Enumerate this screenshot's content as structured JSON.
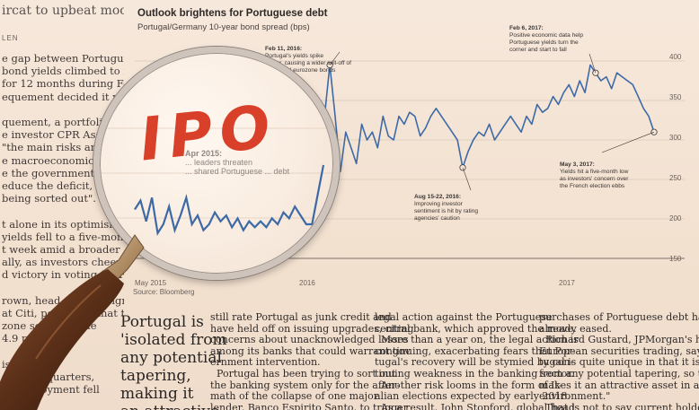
{
  "left_column": {
    "headline_fragment": "ircat to upbeat mood",
    "byline_fragment": "LEN",
    "lines": [
      "e gap between Portuguese and",
      "bond yields climbed to its high-",
      "for 12 months during February,",
      "equement decided it was time",
      "",
      "quement, a portfolio manag",
      "e investor CPR Asset Mana",
      "\"the main risks are bel",
      "e macroeconomic dyna",
      "e the government is",
      "educe the deficit, the bank",
      "being sorted out\".",
      "",
      "t alone in its optimism. P",
      "yields fell to a five-month",
      "t week amid a broader European",
      "ally, as investors cheered Emmanuel",
      "d victory in voting for France's",
      "",
      "rown, head of sovereign d",
      "at Citi, points out that t",
      "zone sovereign de",
      "4.9 per cent s",
      "",
      "is running",
      "straight quarters,",
      "unemployment fell"
    ]
  },
  "chart_data": {
    "type": "line",
    "title": "Outlook brightens for Portuguese debt",
    "subtitle": "Portugal/Germany 10-year bond spread (bps)",
    "xlabel": "",
    "ylabel": "",
    "x_ticks": [
      "May 2015",
      "2016",
      "2017"
    ],
    "y_ticks": [
      400,
      350,
      300,
      250,
      200,
      150
    ],
    "ylim": [
      150,
      400
    ],
    "source": "Source: Bloomberg",
    "series": [
      {
        "values": [
          225,
          240,
          205,
          245,
          185,
          200,
          230,
          190,
          215,
          245,
          200,
          215,
          190,
          200,
          220,
          205,
          215,
          195,
          210,
          190,
          205,
          195,
          205,
          195,
          210,
          200,
          220,
          210,
          230,
          215,
          200,
          200,
          250,
          300,
          330,
          395,
          330,
          260,
          310,
          290,
          270,
          320,
          300,
          310,
          290,
          330,
          305,
          300,
          330,
          320,
          335,
          330,
          305,
          315,
          330,
          340,
          330,
          320,
          310,
          300,
          265,
          285,
          300,
          310,
          305,
          320,
          300,
          310,
          320,
          330,
          320,
          310,
          330,
          320,
          345,
          335,
          340,
          355,
          345,
          360,
          370,
          355,
          375,
          360,
          395,
          385,
          375,
          380,
          365,
          385,
          380,
          375,
          370,
          355,
          340,
          330,
          310
        ],
        "color": "#3d6aa6"
      }
    ],
    "annotations": [
      {
        "date": "Feb 11, 2016:",
        "text": "Portugal's yields spike\nhigher, causing a wider sell-off of\nperipheral eurozone bonds"
      },
      {
        "date": "Aug 15-22, 2016:",
        "text": "Improving investor\nsentiment is hit by rating\nagencies' caution"
      },
      {
        "date": "Feb 6, 2017:",
        "text": "Positive economic data help\nPortuguese yields turn the\ncorner and start to fall"
      },
      {
        "date": "May 3, 2017:",
        "text": "Yields hit a five-month low\nas investors' concern over\nthe French election ebbs"
      },
      {
        "date": "Apr 2015:",
        "text": "... leaders threaten\n... shared Portuguese ... debt"
      }
    ]
  },
  "lens": {
    "overlay_text": "IPO",
    "overlay_color": "#d8402a"
  },
  "article": {
    "headline": "Portugal is\n'isolated from\nany potential\ntapering,\nmaking it\nan attractive",
    "col1": "still rate Portugal as junk credit and\nhave held off on issuing upgrades, citing\nconcerns about unacknowledged losses\namong its banks that could warrant gov\nernment intervention.\n  Portugal has been trying to sort out\nthe banking system only for the after-\nmath of the collapse of one major\nlender, Banco Espirito Santo, to trigger",
    "col2": "legal action against the Portuguese\ncentral bank, which approved the move.\n  More than a year on, the legal action is\ncontinuing, exacerbating fears that Por-\ntugal's recovery will be stymied by con-\ntinuing weakness in the banking sector.\n  Another risk looms in the form of It-\nalian elections expected by early 2018.\n  As a result, John Stopford, global head",
    "col3": "purchases of Portuguese debt have\nalready eased.\n  Richard Gustard, JPMorgan's head of\nEuropean securities trading, says: \"Por-\ntugal is quite unique in that it is isolated\nfrom any potential tapering, so that\nmakes it an attractive asset in a risk-on\nenvironment.\"\n  That is not to say current holders of"
  }
}
